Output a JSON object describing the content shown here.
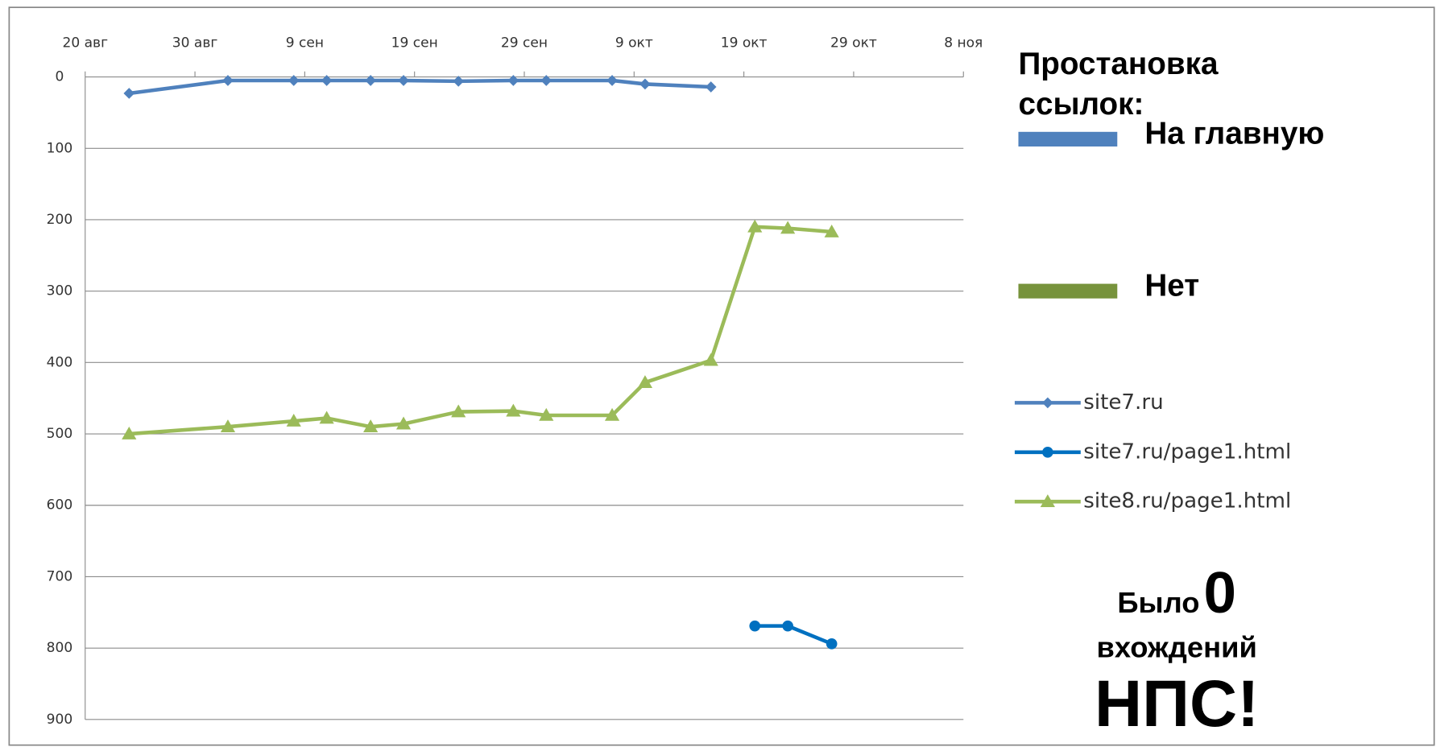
{
  "chart_data": {
    "type": "line",
    "xlim": [
      0,
      80
    ],
    "xticks": [
      {
        "value": 0,
        "label": "20 авг"
      },
      {
        "value": 10,
        "label": "30 авг"
      },
      {
        "value": 20,
        "label": "9 сен"
      },
      {
        "value": 30,
        "label": "19 сен"
      },
      {
        "value": 40,
        "label": "29 сен"
      },
      {
        "value": 50,
        "label": "9 окт"
      },
      {
        "value": 60,
        "label": "19 окт"
      },
      {
        "value": 70,
        "label": "29 окт"
      },
      {
        "value": 80,
        "label": "8 ноя"
      }
    ],
    "ylim": [
      0,
      900
    ],
    "y_reversed": true,
    "yticks": [
      0,
      100,
      200,
      300,
      400,
      500,
      600,
      700,
      800,
      900
    ],
    "grid": true,
    "series": [
      {
        "name": "site7.ru",
        "color": "#4f81bd",
        "marker": "diamond",
        "x": [
          4,
          13,
          19,
          22,
          26,
          29,
          34,
          39,
          42,
          48,
          51,
          57
        ],
        "values": [
          23,
          5,
          5,
          5,
          5,
          5,
          6,
          5,
          5,
          5,
          10,
          14
        ]
      },
      {
        "name": "site7.ru/page1.html",
        "color": "#0070c0",
        "marker": "circle",
        "x": [
          61,
          64,
          68
        ],
        "values": [
          769,
          769,
          794
        ]
      },
      {
        "name": "site8.ru/page1.html",
        "color": "#9bbb59",
        "marker": "triangle",
        "x": [
          4,
          13,
          19,
          22,
          26,
          29,
          34,
          39,
          42,
          48,
          51,
          57,
          61,
          64,
          68
        ],
        "values": [
          500,
          490,
          482,
          478,
          490,
          486,
          469,
          468,
          474,
          474,
          428,
          397,
          210,
          212,
          217
        ]
      }
    ],
    "legend_title": "Простановка ссылок:",
    "legend_groups": [
      {
        "name": "На главную",
        "color": "#4f81bd"
      },
      {
        "name": "Нет",
        "color": "#77933c"
      }
    ],
    "annotation": [
      "Было",
      "0",
      "вхождений",
      "НПС!"
    ]
  }
}
